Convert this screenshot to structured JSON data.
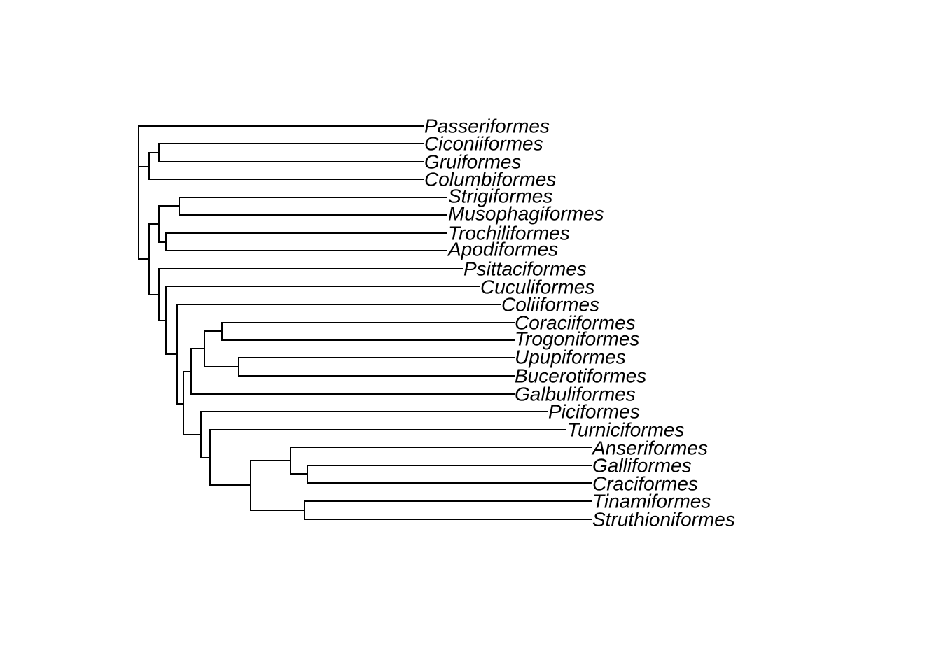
{
  "tree": {
    "type": "phylogram",
    "tips": [
      "Passeriformes",
      "Ciconiiformes",
      "Gruiformes",
      "Columbiformes",
      "Strigiformes",
      "Musophagiformes",
      "Trochiliformes",
      "Apodiformes",
      "Psittaciformes",
      "Cuculiformes",
      "Coliiformes",
      "Coraciiformes",
      "Trogoniformes",
      "Upupiformes",
      "Bucerotiformes",
      "Galbuliformes",
      "Piciformes",
      "Turniciformes",
      "Anseriformes",
      "Galliformes",
      "Craciformes",
      "Tinamiformes",
      "Struthioniformes"
    ],
    "newick": "(Passeriformes,((Ciconiiformes,Gruiformes),Columbiformes),(((Strigiformes,Musophagiformes),(Trochiliformes,Apodiformes)),(Psittaciformes,(Cuculiformes,(Coliiformes,((((Coraciiformes,Trogoniformes),(Upupiformes,Bucerotiformes)),Galbuliformes),(Piciformes,(Turniciformes,((Anseriformes,(Galliformes,Craciformes)),(Tinamiformes,Struthioniformes))))))))));",
    "line_color": "#000000"
  }
}
